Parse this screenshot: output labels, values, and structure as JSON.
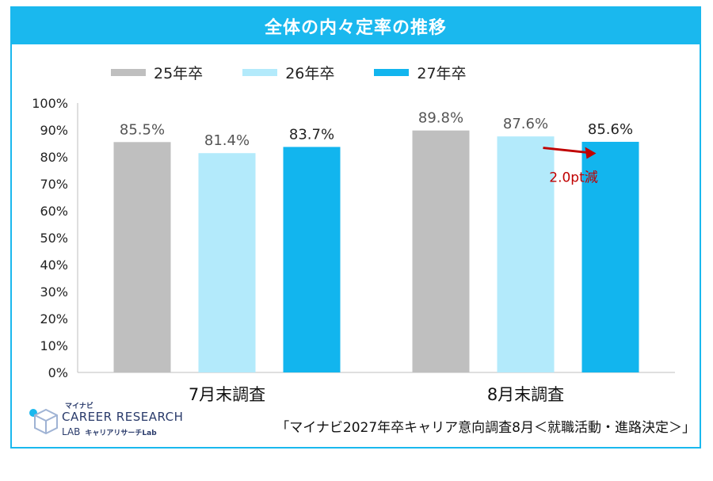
{
  "title": "全体の内々定率の推移",
  "legend": [
    {
      "name": "25年卒",
      "color": "#bfbfbf"
    },
    {
      "name": "26年卒",
      "color": "#b3eafb"
    },
    {
      "name": "27年卒",
      "color": "#12b5ee"
    }
  ],
  "chart_data": {
    "type": "bar",
    "categories": [
      "7月末調査",
      "8月末調査"
    ],
    "series": [
      {
        "name": "25年卒",
        "values": [
          85.5,
          89.8
        ],
        "labels": [
          "85.5%",
          "89.8%"
        ]
      },
      {
        "name": "26年卒",
        "values": [
          81.4,
          87.6
        ],
        "labels": [
          "81.4%",
          "87.6%"
        ]
      },
      {
        "name": "27年卒",
        "values": [
          83.7,
          85.6
        ],
        "labels": [
          "83.7%",
          "85.6%"
        ]
      }
    ],
    "ylim": [
      0,
      100
    ],
    "yticks": [
      "0%",
      "10%",
      "20%",
      "30%",
      "40%",
      "50%",
      "60%",
      "70%",
      "80%",
      "90%",
      "100%"
    ],
    "grid": false,
    "legend_position": "top",
    "annotation": {
      "text": "2.0pt減",
      "color": "#c00000"
    }
  },
  "logo": {
    "small": "マイナビ",
    "main": "CAREER RESEARCH",
    "sub": "LAB",
    "sub_jp": "キャリアリサーチLab"
  },
  "source": "「マイナビ2027年卒キャリア意向調査8月＜就職活動・進路決定＞」"
}
